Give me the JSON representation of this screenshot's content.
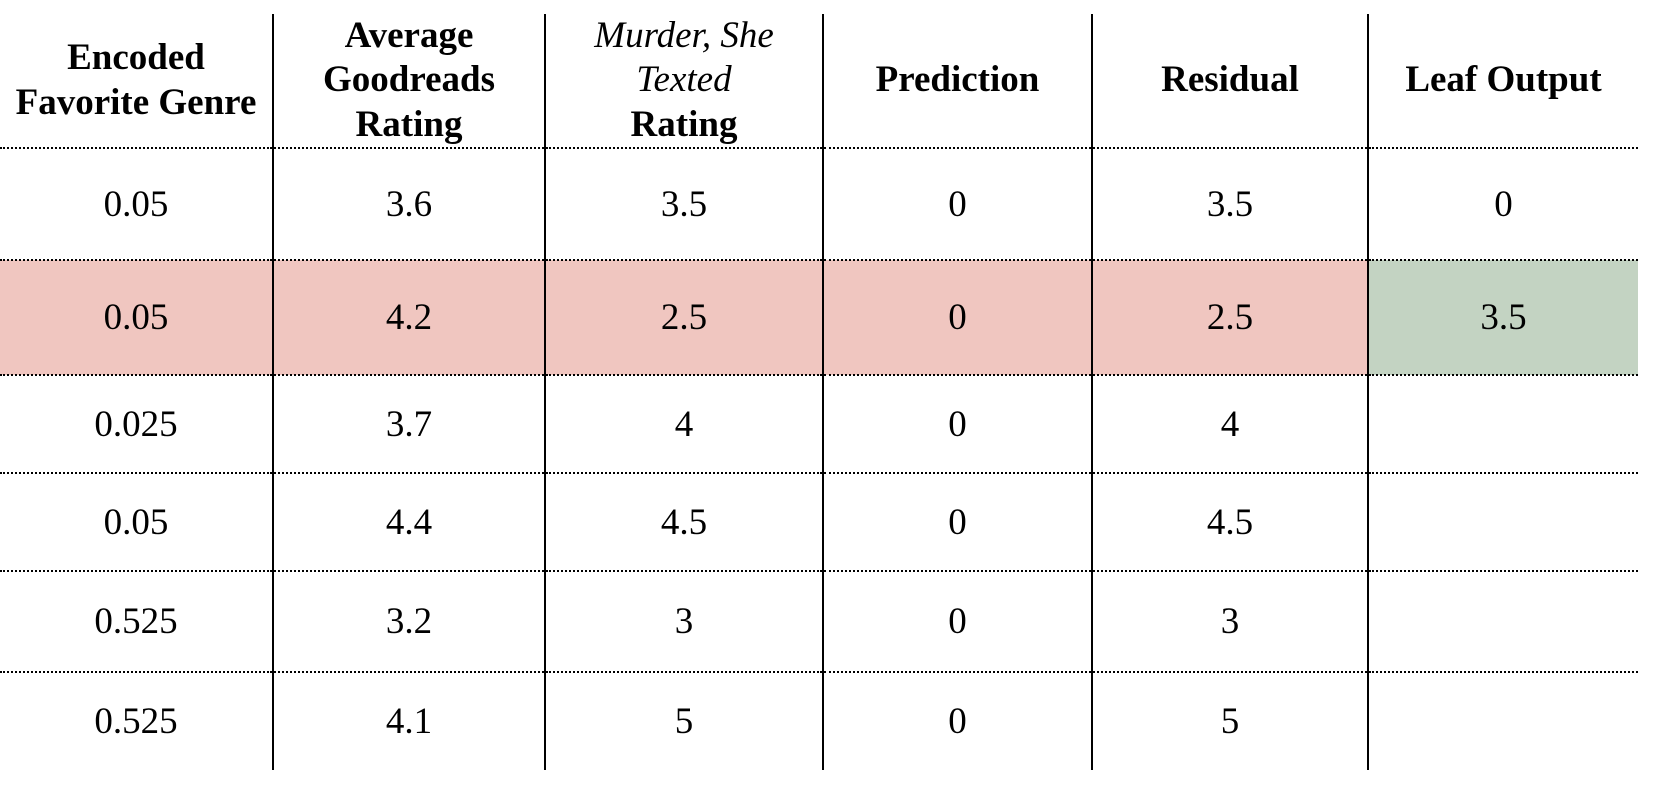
{
  "colors": {
    "row_highlight_pink": "#f0c6c0",
    "leaf_highlight_green": "#c3d3c2",
    "grid_line": "#000000",
    "background": "#ffffff"
  },
  "table": {
    "header": {
      "col1": {
        "line1": "Encoded",
        "line2": "Favorite Genre"
      },
      "col2": {
        "line1": "Average",
        "line2": "Goodreads Rating"
      },
      "col3": {
        "line1": "Murder, She Texted",
        "line2": "Rating"
      },
      "col4": {
        "line1": "Prediction"
      },
      "col5": {
        "line1": "Residual"
      },
      "col6": {
        "line1": "Leaf Output"
      }
    },
    "rows": [
      {
        "cells": [
          "0.05",
          "3.6",
          "3.5",
          "0",
          "3.5",
          "0"
        ]
      },
      {
        "cells": [
          "0.05",
          "4.2",
          "2.5",
          "0",
          "2.5",
          "3.5"
        ],
        "row_highlight": "pink",
        "leaf_highlight": "green"
      },
      {
        "cells": [
          "0.025",
          "3.7",
          "4",
          "0",
          "4",
          ""
        ]
      },
      {
        "cells": [
          "0.05",
          "4.4",
          "4.5",
          "0",
          "4.5",
          ""
        ]
      },
      {
        "cells": [
          "0.525",
          "3.2",
          "3",
          "0",
          "3",
          ""
        ]
      },
      {
        "cells": [
          "0.525",
          "4.1",
          "5",
          "0",
          "5",
          ""
        ]
      }
    ]
  },
  "chart_data": {
    "type": "table",
    "title": "",
    "columns": [
      "Encoded Favorite Genre",
      "Average Goodreads Rating",
      "Murder, She Texted Rating",
      "Prediction",
      "Residual",
      "Leaf Output"
    ],
    "rows": [
      {
        "encoded_favorite_genre": 0.05,
        "average_goodreads_rating": 3.6,
        "murder_she_texted_rating": 3.5,
        "prediction": 0,
        "residual": 3.5,
        "leaf_output": 0
      },
      {
        "encoded_favorite_genre": 0.05,
        "average_goodreads_rating": 4.2,
        "murder_she_texted_rating": 2.5,
        "prediction": 0,
        "residual": 2.5,
        "leaf_output": 3.5,
        "highlighted": true
      },
      {
        "encoded_favorite_genre": 0.025,
        "average_goodreads_rating": 3.7,
        "murder_she_texted_rating": 4,
        "prediction": 0,
        "residual": 4,
        "leaf_output": null
      },
      {
        "encoded_favorite_genre": 0.05,
        "average_goodreads_rating": 4.4,
        "murder_she_texted_rating": 4.5,
        "prediction": 0,
        "residual": 4.5,
        "leaf_output": null
      },
      {
        "encoded_favorite_genre": 0.525,
        "average_goodreads_rating": 3.2,
        "murder_she_texted_rating": 3,
        "prediction": 0,
        "residual": 3,
        "leaf_output": null
      },
      {
        "encoded_favorite_genre": 0.525,
        "average_goodreads_rating": 4.1,
        "murder_she_texted_rating": 5,
        "prediction": 0,
        "residual": 5,
        "leaf_output": null
      }
    ],
    "layout_hints": {
      "highlighted_row_index": 1,
      "highlighted_row_color": "#f0c6c0",
      "highlighted_leaf_cell": {
        "row_index": 1,
        "column": "Leaf Output",
        "color": "#c3d3c2"
      },
      "vertical_separators": "solid",
      "horizontal_separators": "dotted",
      "outer_border": "none"
    }
  }
}
